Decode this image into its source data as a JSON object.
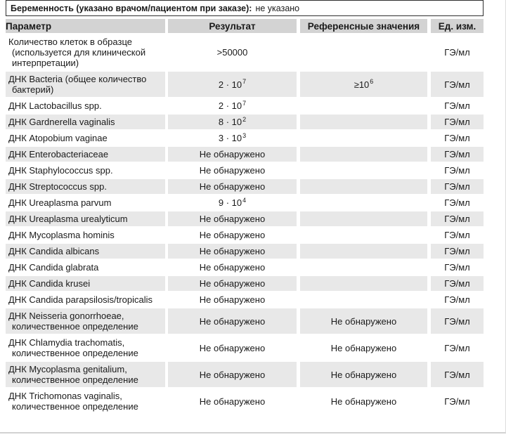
{
  "pregnancy": {
    "label": "Беременность (указано врачом/пациентом при заказе):",
    "value": "не указано"
  },
  "table": {
    "headers": [
      "Параметр",
      "Результат",
      "Референсные значения",
      "Ед. изм."
    ],
    "rows": [
      {
        "parameter": [
          "Количество клеток в образце",
          "(используется для клинической",
          "интерпретации)"
        ],
        "result": ">50000",
        "reference": "",
        "unit": "ГЭ/мл",
        "shaded": false
      },
      {
        "parameter": [
          "ДНК Bacteria (общее количество",
          "бактерий)"
        ],
        "result": "2 · 10^7",
        "reference": "≥10^6",
        "unit": "ГЭ/мл",
        "shaded": true
      },
      {
        "parameter": [
          "ДНК Lactobacillus spp."
        ],
        "result": "2 · 10^7",
        "reference": "",
        "unit": "ГЭ/мл",
        "shaded": false
      },
      {
        "parameter": [
          "ДНК Gardnerella vaginalis"
        ],
        "result": "8 · 10^2",
        "reference": "",
        "unit": "ГЭ/мл",
        "shaded": true
      },
      {
        "parameter": [
          "ДНК Atopobium vaginae"
        ],
        "result": "3 · 10^3",
        "reference": "",
        "unit": "ГЭ/мл",
        "shaded": false
      },
      {
        "parameter": [
          "ДНК Enterobacteriaceae"
        ],
        "result": "Не обнаружено",
        "reference": "",
        "unit": "ГЭ/мл",
        "shaded": true
      },
      {
        "parameter": [
          "ДНК Staphylococcus spp."
        ],
        "result": "Не обнаружено",
        "reference": "",
        "unit": "ГЭ/мл",
        "shaded": false
      },
      {
        "parameter": [
          "ДНК Streptococcus spp."
        ],
        "result": "Не обнаружено",
        "reference": "",
        "unit": "ГЭ/мл",
        "shaded": true
      },
      {
        "parameter": [
          "ДНК Ureaplasma parvum"
        ],
        "result": "9 · 10^4",
        "reference": "",
        "unit": "ГЭ/мл",
        "shaded": false
      },
      {
        "parameter": [
          "ДНК Ureaplasma urealyticum"
        ],
        "result": "Не обнаружено",
        "reference": "",
        "unit": "ГЭ/мл",
        "shaded": true
      },
      {
        "parameter": [
          "ДНК Mycoplasma hominis"
        ],
        "result": "Не обнаружено",
        "reference": "",
        "unit": "ГЭ/мл",
        "shaded": false
      },
      {
        "parameter": [
          "ДНК Candida albicans"
        ],
        "result": "Не обнаружено",
        "reference": "",
        "unit": "ГЭ/мл",
        "shaded": true
      },
      {
        "parameter": [
          "ДНК Candida glabrata"
        ],
        "result": "Не обнаружено",
        "reference": "",
        "unit": "ГЭ/мл",
        "shaded": false
      },
      {
        "parameter": [
          "ДНК Candida krusei"
        ],
        "result": "Не обнаружено",
        "reference": "",
        "unit": "ГЭ/мл",
        "shaded": true
      },
      {
        "parameter": [
          "ДНК Candida parapsilosis/tropicalis"
        ],
        "result": "Не обнаружено",
        "reference": "",
        "unit": "ГЭ/мл",
        "shaded": false
      },
      {
        "parameter": [
          "ДНК Neisseria gonorrhoeae,",
          "количественное определение"
        ],
        "result": "Не обнаружено",
        "reference": "Не обнаружено",
        "unit": "ГЭ/мл",
        "shaded": true
      },
      {
        "parameter": [
          "ДНК Chlamydia trachomatis,",
          "количественное определение"
        ],
        "result": "Не обнаружено",
        "reference": "Не обнаружено",
        "unit": "ГЭ/мл",
        "shaded": false
      },
      {
        "parameter": [
          "ДНК Mycoplasma genitalium,",
          "количественное определение"
        ],
        "result": "Не обнаружено",
        "reference": "Не обнаружено",
        "unit": "ГЭ/мл",
        "shaded": true
      },
      {
        "parameter": [
          "ДНК Trichomonas vaginalis,",
          "количественное определение"
        ],
        "result": "Не обнаружено",
        "reference": "Не обнаружено",
        "unit": "ГЭ/мл",
        "shaded": false
      }
    ]
  },
  "colors": {
    "header_bg": "#d3d3d3",
    "row_shade": "#e8e8e8",
    "text": "#1a1a1a",
    "border": "#2e2e2e",
    "divider": "#d2d2d2"
  }
}
